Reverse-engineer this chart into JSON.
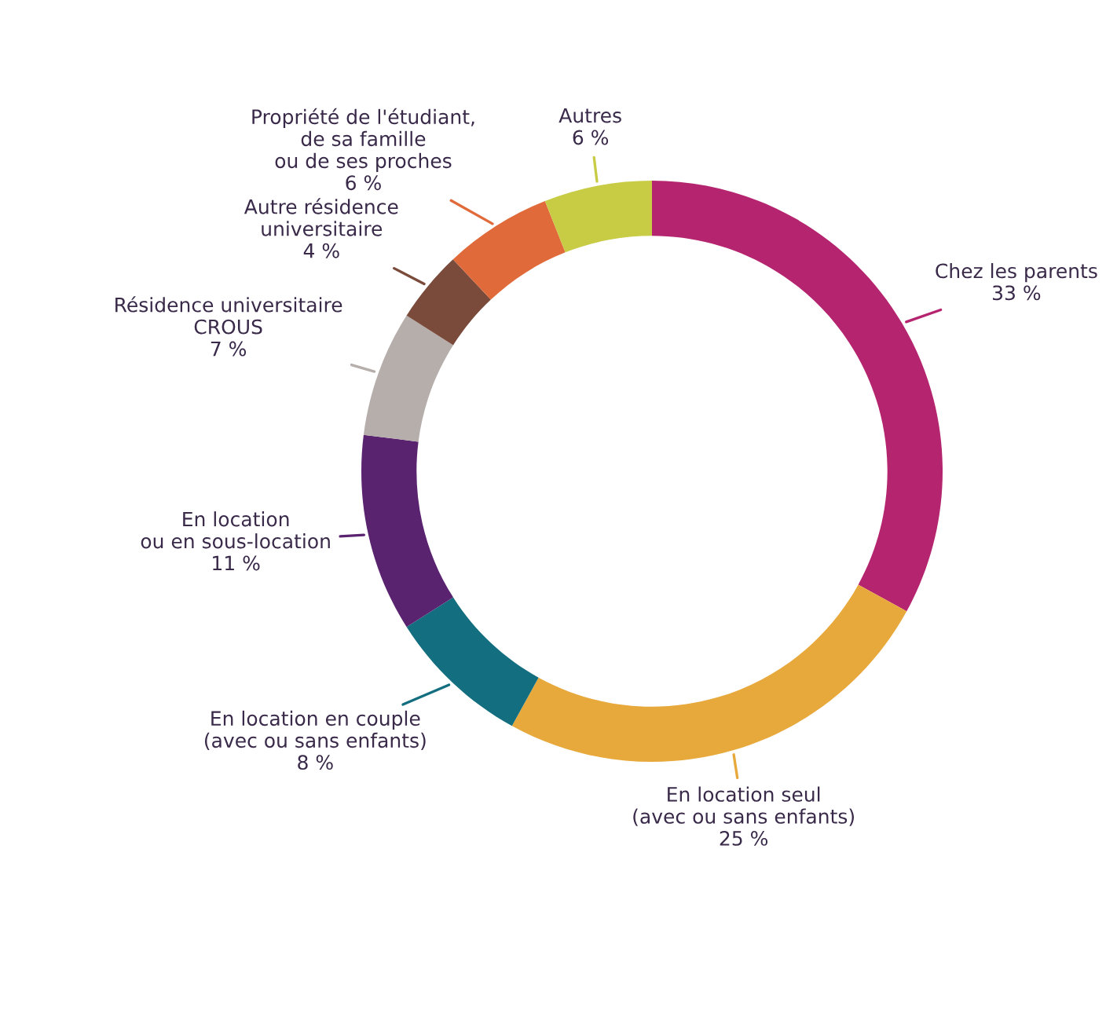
{
  "chart_data": {
    "type": "donut",
    "categories": [
      "Chez les parents",
      "En location seul\n(avec ou sans enfants)",
      "En location en couple\n(avec ou sans enfants)",
      "En location\nou en sous-location",
      "Résidence universitaire\nCROUS",
      "Autre résidence\nuniversitaire",
      "Propriété de l'étudiant,\nde sa famille\nou de ses proches",
      "Autres"
    ],
    "values": [
      33,
      25,
      8,
      11,
      7,
      4,
      6,
      6
    ],
    "value_labels": [
      "33 %",
      "25 %",
      "8 %",
      "11 %",
      "7 %",
      "4 %",
      "6 %",
      "6 %"
    ],
    "colors": [
      "#b5246f",
      "#e8a93c",
      "#136e80",
      "#5a2370",
      "#b5aeaa",
      "#7a4a3a",
      "#e06a3a",
      "#c8cc45"
    ]
  }
}
